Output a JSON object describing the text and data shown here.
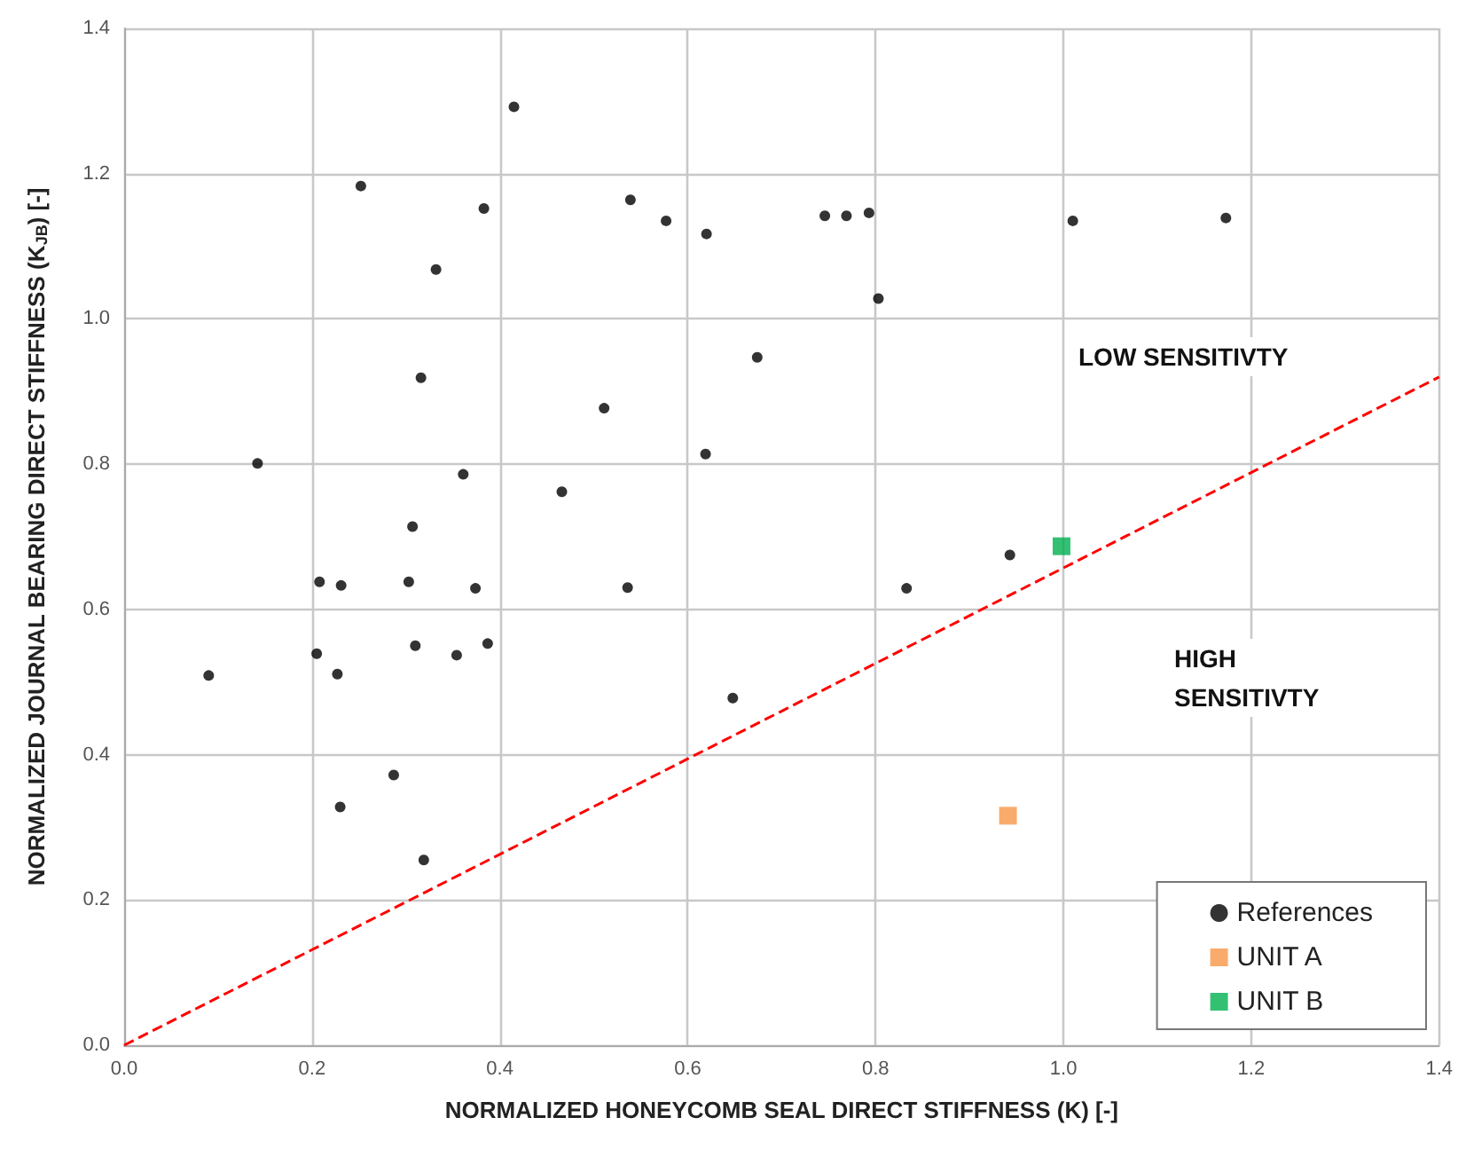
{
  "chart_data": {
    "type": "scatter",
    "xlabel": "NORMALIZED HONEYCOMB SEAL DIRECT STIFFNESS (K) [-]",
    "ylabel": "NORMALIZED JOURNAL BEARING DIRECT STIFFNESS (K$_{JB}$) [-]",
    "xlim": [
      0,
      1.4
    ],
    "xticks": [
      {
        "value": 0,
        "label": "0.0"
      },
      0.2,
      0.4,
      0.6,
      0.8,
      {
        "value": 1,
        "label": "1.0"
      },
      1.2,
      1.4
    ],
    "ylim": [
      0,
      1.4
    ],
    "yticks": [
      {
        "value": 0,
        "label": "0.0"
      },
      0.2,
      0.4,
      0.6,
      0.8,
      {
        "value": 1,
        "label": "1.0"
      },
      1.2,
      1.4
    ],
    "grid": true,
    "legend": "bottom right",
    "series": [
      {
        "name": "References",
        "color": "#000000",
        "marker": "circle",
        "x": [
          0.415,
          0.252,
          0.383,
          0.539,
          0.332,
          0.316,
          0.511,
          0.142,
          0.361,
          0.466,
          0.307,
          0.208,
          0.231,
          0.303,
          0.374,
          0.536,
          0.205,
          0.31,
          0.354,
          0.387,
          0.227,
          0.09,
          0.287,
          0.23,
          0.319,
          0.577,
          0.62,
          0.746,
          0.769,
          0.793,
          1.01,
          1.173,
          0.803,
          0.674,
          0.619,
          0.943,
          0.833,
          0.648
        ],
        "values": [
          1.292,
          1.183,
          1.152,
          1.164,
          1.068,
          0.919,
          0.877,
          0.801,
          0.786,
          0.762,
          0.714,
          0.638,
          0.633,
          0.638,
          0.629,
          0.63,
          0.539,
          0.55,
          0.537,
          0.553,
          0.511,
          0.509,
          0.372,
          0.328,
          0.255,
          1.135,
          1.117,
          1.142,
          1.142,
          1.146,
          1.135,
          1.139,
          1.028,
          0.947,
          0.814,
          0.675,
          0.629,
          0.478
        ]
      },
      {
        "name": "UNIT A",
        "color": "#f79646",
        "marker": "square",
        "x": [
          0.941
        ],
        "values": [
          0.316
        ]
      },
      {
        "name": "UNIT B",
        "color": "#00b050",
        "marker": "square",
        "x": [
          0.998
        ],
        "values": [
          0.687
        ]
      },
      {
        "type": "line",
        "color": "#ff0000",
        "marker": "none",
        "line_style": "dashed",
        "x": [
          0,
          1.4
        ],
        "values": [
          0,
          0.92
        ]
      }
    ],
    "annotations": [
      "LOW SENSITIVTY",
      "HIGH SENSITIVTY"
    ]
  }
}
